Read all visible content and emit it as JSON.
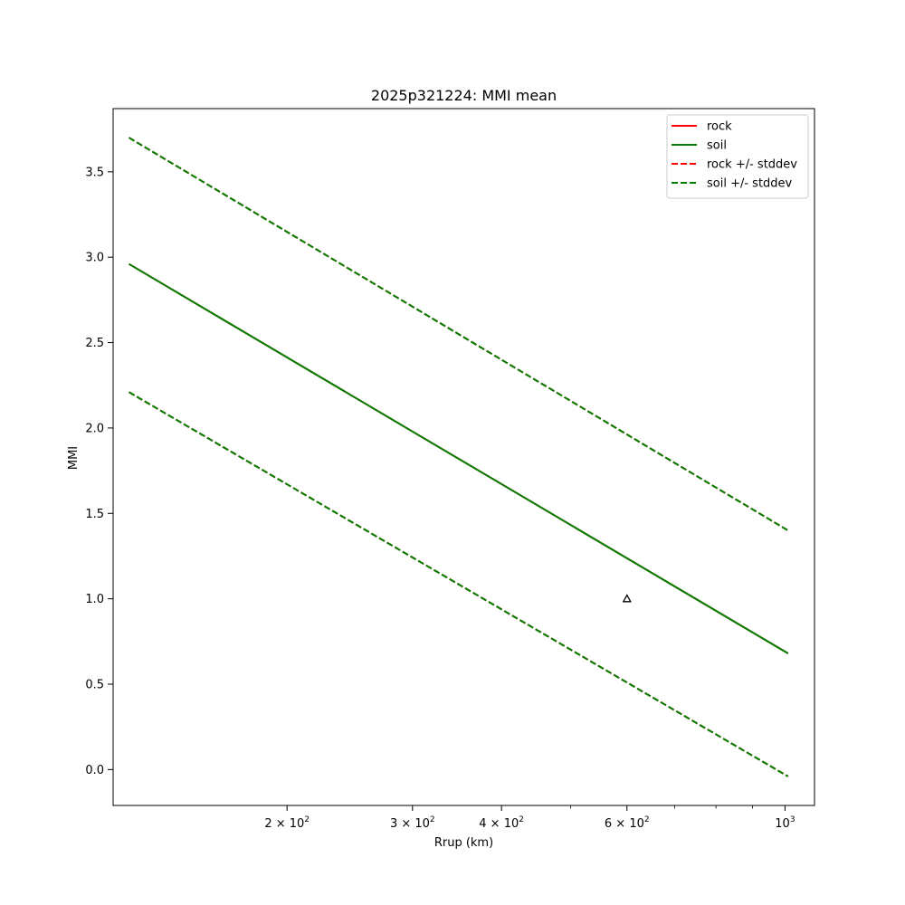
{
  "chart_data": {
    "type": "line",
    "title": "2025p321224: MMI mean",
    "xlabel": "Rrup (km)",
    "ylabel": "MMI",
    "xscale": "log",
    "xlim": [
      114,
      1100
    ],
    "ylim": [
      -0.21,
      3.87
    ],
    "x_ticks": [
      {
        "value": 200,
        "base": "2",
        "exp": "2"
      },
      {
        "value": 300,
        "base": "3",
        "exp": "2"
      },
      {
        "value": 400,
        "base": "4",
        "exp": "2"
      },
      {
        "value": 600,
        "base": "6",
        "exp": "2"
      },
      {
        "value": 1000,
        "base": "",
        "exp": "3"
      }
    ],
    "x_minor_ticks": [
      500,
      700,
      800,
      900
    ],
    "y_ticks": [
      "0.0",
      "0.5",
      "1.0",
      "1.5",
      "2.0",
      "2.5",
      "3.0",
      "3.5"
    ],
    "series": [
      {
        "name": "rock",
        "style": "solid",
        "color": "#ff0000",
        "x": [
          120,
          1010
        ],
        "y": [
          2.96,
          0.68
        ]
      },
      {
        "name": "soil",
        "style": "solid",
        "color": "#008000",
        "x": [
          120,
          1010
        ],
        "y": [
          2.96,
          0.68
        ]
      },
      {
        "name": "rock +/- stddev",
        "style": "dashed",
        "color": "#ff0000",
        "bands": [
          {
            "x": [
              120,
              1010
            ],
            "y": [
              3.7,
              1.4
            ]
          },
          {
            "x": [
              120,
              1010
            ],
            "y": [
              2.21,
              -0.04
            ]
          }
        ]
      },
      {
        "name": "soil +/- stddev",
        "style": "dashed",
        "color": "#008000",
        "bands": [
          {
            "x": [
              120,
              1010
            ],
            "y": [
              3.7,
              1.4
            ]
          },
          {
            "x": [
              120,
              1010
            ],
            "y": [
              2.21,
              -0.04
            ]
          }
        ]
      }
    ],
    "points": [
      {
        "x": 600,
        "y": 1.0,
        "marker": "triangle"
      }
    ],
    "legend_position": "top-right",
    "grid": false
  }
}
